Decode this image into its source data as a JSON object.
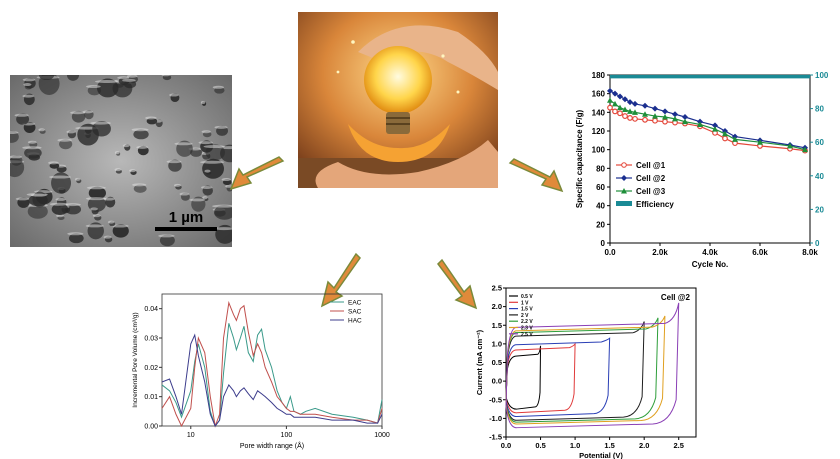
{
  "sem": {
    "scale_text": "1 µm"
  },
  "chart_data": [
    {
      "type": "line",
      "title": "",
      "xlabel": "Cycle No.",
      "ylabel": "Specific capacitance (F/g)",
      "y2label": "",
      "xlim": [
        0,
        8000
      ],
      "ylim": [
        0,
        180
      ],
      "y2lim": [
        0,
        100
      ],
      "xticks": [
        "0.0",
        "2.0k",
        "4.0k",
        "6.0k",
        "8.0k"
      ],
      "yticks": [
        "0",
        "20",
        "40",
        "60",
        "80",
        "100",
        "120",
        "140",
        "160",
        "180"
      ],
      "y2ticks": [
        "0",
        "20",
        "40",
        "60",
        "80",
        "100"
      ],
      "legend_position": "lower-left",
      "series": [
        {
          "name": "Cell @1",
          "color": "#e4473a",
          "marker": "circle",
          "x": [
            0,
            200,
            400,
            600,
            800,
            1000,
            1400,
            1800,
            2200,
            2600,
            3000,
            3600,
            4200,
            4600,
            5000,
            6000,
            7200,
            7800
          ],
          "y": [
            145,
            141,
            139,
            136,
            134,
            133,
            132,
            131,
            130,
            129,
            128,
            125,
            118,
            112,
            107,
            104,
            101,
            99
          ]
        },
        {
          "name": "Cell @2",
          "color": "#1b2f8f",
          "marker": "diamond",
          "x": [
            0,
            200,
            400,
            600,
            800,
            1000,
            1400,
            1800,
            2200,
            2600,
            3000,
            3600,
            4200,
            4600,
            5000,
            6000,
            7200,
            7800
          ],
          "y": [
            163,
            160,
            157,
            154,
            151,
            149,
            147,
            144,
            141,
            138,
            135,
            130,
            126,
            120,
            114,
            110,
            105,
            102
          ]
        },
        {
          "name": "Cell @3",
          "color": "#1f8f3a",
          "marker": "triangle",
          "x": [
            0,
            200,
            400,
            600,
            800,
            1000,
            1400,
            1800,
            2200,
            2600,
            3000,
            3600,
            4200,
            4600,
            5000,
            6000,
            7200,
            7800
          ],
          "y": [
            153,
            149,
            145,
            143,
            141,
            140,
            138,
            136,
            135,
            133,
            130,
            127,
            122,
            117,
            111,
            108,
            104,
            100
          ]
        },
        {
          "name": "Efficiency",
          "color": "#1a8a95",
          "axis": "right",
          "x": [
            0,
            1000,
            2000,
            3000,
            4000,
            5000,
            6000,
            7000,
            8000
          ],
          "y": [
            99,
            99,
            99,
            99,
            99,
            99,
            99,
            99,
            99
          ]
        }
      ]
    },
    {
      "type": "line",
      "title": "",
      "xlabel": "Pore width range (Å)",
      "ylabel": "Incremental Pore Volume (cm³/g)",
      "xscale": "log",
      "xlim": [
        5,
        1000
      ],
      "ylim": [
        0,
        0.045
      ],
      "xticks": [
        "10",
        "100",
        "1000"
      ],
      "yticks": [
        "0.00",
        "0.01",
        "0.02",
        "0.03",
        "0.04"
      ],
      "legend_position": "top-right",
      "series": [
        {
          "name": "EAC",
          "color": "#3a9a8a",
          "x": [
            5,
            6,
            7,
            8,
            10,
            11,
            12,
            14,
            16,
            18,
            20,
            22,
            25,
            28,
            30,
            33,
            36,
            40,
            45,
            50,
            55,
            60,
            70,
            80,
            90,
            100,
            110,
            120,
            140,
            160,
            200,
            300,
            500,
            700,
            900,
            1000
          ],
          "x_note": "",
          "y": [
            0.014,
            0.012,
            0.008,
            0.003,
            0.012,
            0.022,
            0.028,
            0.02,
            0.005,
            0.0,
            0.002,
            0.018,
            0.035,
            0.03,
            0.026,
            0.03,
            0.034,
            0.025,
            0.022,
            0.031,
            0.033,
            0.026,
            0.02,
            0.012,
            0.008,
            0.006,
            0.01,
            0.005,
            0.004,
            0.005,
            0.006,
            0.004,
            0.003,
            0.002,
            0.001,
            0.009
          ]
        },
        {
          "name": "SAC",
          "color": "#c0504d",
          "x": [
            5,
            6,
            7,
            8,
            10,
            11,
            12,
            14,
            16,
            18,
            20,
            22,
            25,
            28,
            30,
            33,
            36,
            40,
            45,
            50,
            55,
            60,
            70,
            80,
            90,
            100,
            110,
            120,
            140,
            160,
            200,
            300,
            500,
            700,
            900,
            1000
          ],
          "y": [
            0.006,
            0.01,
            0.004,
            0.0,
            0.006,
            0.02,
            0.03,
            0.025,
            0.01,
            0.0,
            0.004,
            0.03,
            0.042,
            0.038,
            0.036,
            0.04,
            0.041,
            0.032,
            0.024,
            0.028,
            0.025,
            0.02,
            0.015,
            0.01,
            0.008,
            0.006,
            0.005,
            0.005,
            0.004,
            0.004,
            0.004,
            0.003,
            0.002,
            0.002,
            0.001,
            0.006
          ]
        },
        {
          "name": "HAC",
          "color": "#3c3c8c",
          "x": [
            5,
            6,
            7,
            8,
            10,
            11,
            12,
            14,
            16,
            18,
            20,
            22,
            25,
            28,
            30,
            33,
            36,
            40,
            45,
            50,
            55,
            60,
            70,
            80,
            90,
            100,
            110,
            120,
            140,
            160,
            200,
            300,
            500,
            700,
            900,
            1000
          ],
          "y": [
            0.015,
            0.016,
            0.01,
            0.004,
            0.028,
            0.031,
            0.024,
            0.015,
            0.004,
            0.0,
            0.002,
            0.01,
            0.014,
            0.012,
            0.01,
            0.012,
            0.013,
            0.011,
            0.009,
            0.012,
            0.011,
            0.01,
            0.008,
            0.006,
            0.005,
            0.004,
            0.004,
            0.003,
            0.003,
            0.003,
            0.003,
            0.002,
            0.002,
            0.001,
            0.001,
            0.004
          ]
        }
      ]
    },
    {
      "type": "line",
      "title": "Cell @2",
      "xlabel": "Potential (V)",
      "ylabel": "Current (mA cm⁻²)",
      "xlim": [
        0,
        2.75
      ],
      "ylim": [
        -1.5,
        2.5
      ],
      "xticks": [
        "0.0",
        "0.5",
        "1.0",
        "1.5",
        "2.0",
        "2.5"
      ],
      "yticks": [
        "-1.5",
        "-1.0",
        "-0.5",
        "0.0",
        "0.5",
        "1.0",
        "1.5",
        "2.0",
        "2.5"
      ],
      "legend_position": "top-left",
      "series": [
        {
          "name": "0.5 V",
          "color": "#000000",
          "vmax": 0.5,
          "upper": 0.72,
          "lower": -0.75,
          "peak": 0.95
        },
        {
          "name": "1 V",
          "color": "#e03a3a",
          "vmax": 1.0,
          "upper": 0.9,
          "lower": -0.85,
          "peak": 1.0
        },
        {
          "name": "1.5 V",
          "color": "#2a3fb5",
          "vmax": 1.5,
          "upper": 1.05,
          "lower": -0.95,
          "peak": 1.15
        },
        {
          "name": "2 V",
          "color": "#1f1f1f",
          "vmax": 2.0,
          "upper": 1.3,
          "lower": -1.05,
          "peak": 1.6
        },
        {
          "name": "2.2 V",
          "color": "#2e9e3a",
          "vmax": 2.2,
          "upper": 1.4,
          "lower": -1.1,
          "peak": 1.7
        },
        {
          "name": "2.3 V",
          "color": "#e0a020",
          "vmax": 2.3,
          "upper": 1.45,
          "lower": -1.15,
          "peak": 1.75
        },
        {
          "name": "2.5 V",
          "color": "#8a3fb5",
          "vmax": 2.5,
          "upper": 1.55,
          "lower": -1.25,
          "peak": 2.1
        }
      ]
    }
  ]
}
